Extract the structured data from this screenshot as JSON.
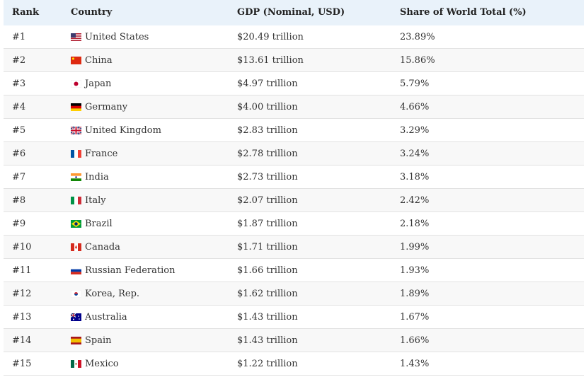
{
  "table": {
    "header": [
      "Rank",
      "Country",
      "GDP (Nominal, USD)",
      "Share of World Total (%)"
    ],
    "rows": [
      [
        "#1",
        "United States",
        "$20.49 trillion",
        "23.89%"
      ],
      [
        "#2",
        "China",
        "$13.61 trillion",
        "15.86%"
      ],
      [
        "#3",
        "Japan",
        "$4.97 trillion",
        "5.79%"
      ],
      [
        "#4",
        "Germany",
        "$4.00 trillion",
        "4.66%"
      ],
      [
        "#5",
        "United Kingdom",
        "$2.83 trillion",
        "3.29%"
      ],
      [
        "#6",
        "France",
        "$2.78 trillion",
        "3.24%"
      ],
      [
        "#7",
        "India",
        "$2.73 trillion",
        "3.18%"
      ],
      [
        "#8",
        "Italy",
        "$2.07 trillion",
        "2.42%"
      ],
      [
        "#9",
        "Brazil",
        "$1.87 trillion",
        "2.18%"
      ],
      [
        "#10",
        "Canada",
        "$1.71 trillion",
        "1.99%"
      ],
      [
        "#11",
        "Russian Federation",
        "$1.66 trillion",
        "1.93%"
      ],
      [
        "#12",
        "Korea, Rep.",
        "$1.62 trillion",
        "1.89%"
      ],
      [
        "#13",
        "Australia",
        "$1.43 trillion",
        "1.67%"
      ],
      [
        "#14",
        "Spain",
        "$1.43 trillion",
        "1.66%"
      ],
      [
        "#15",
        "Mexico",
        "$1.22 trillion",
        "1.43%"
      ]
    ]
  }
}
